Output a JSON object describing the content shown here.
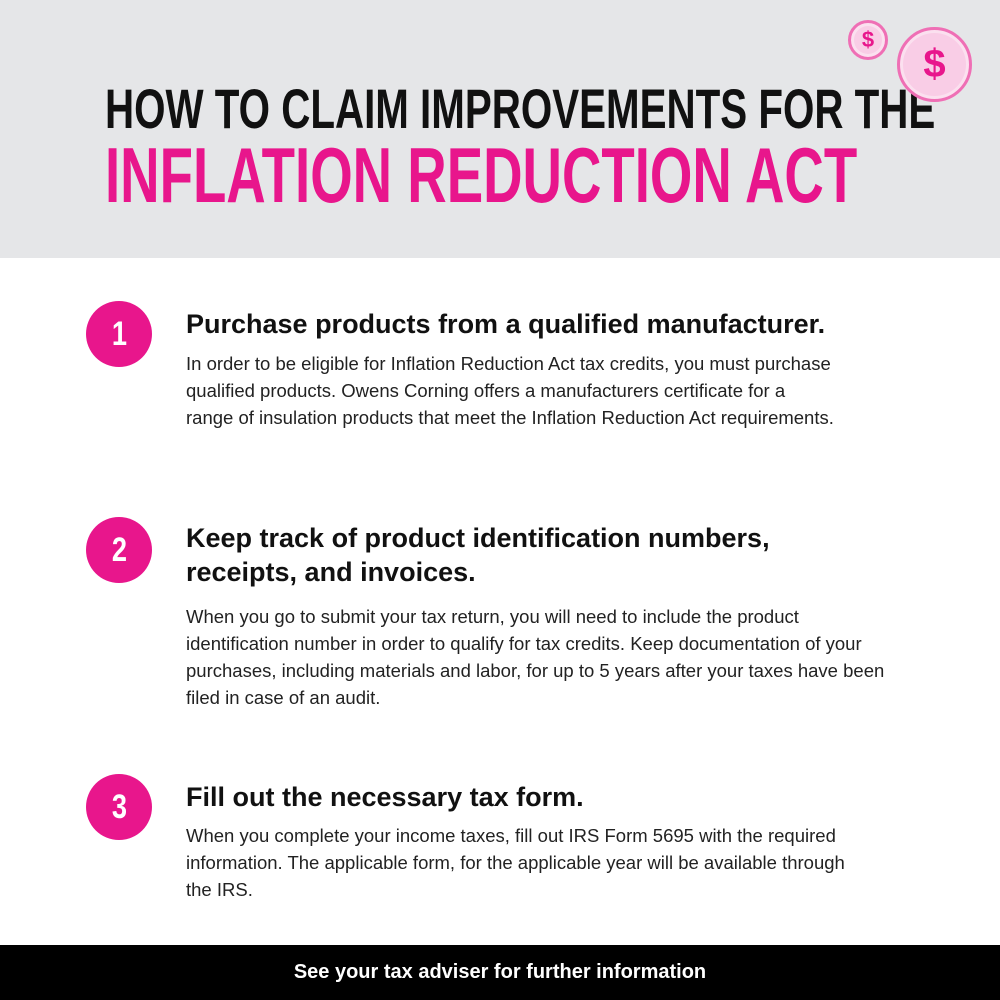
{
  "header": {
    "title_line1": "HOW TO CLAIM IMPROVEMENTS FOR THE",
    "title_line2": "INFLATION REDUCTION ACT",
    "coin_symbol": "$",
    "accent": "#e8168c"
  },
  "steps": [
    {
      "number": "1",
      "heading": "Purchase products from a qualified manufacturer.",
      "body": "In order to be eligible for Inflation Reduction Act tax credits, you must purchase qualified products. Owens Corning offers a manufacturers certificate for a range of insulation products that meet the Inflation Reduction Act requirements."
    },
    {
      "number": "2",
      "heading": "Keep track of product identification numbers, receipts, and invoices.",
      "body": "When you go to submit your tax return, you will need to include the product identification number in order to qualify for tax credits. Keep documentation of your purchases, including materials and labor, for up to 5 years after your taxes have been filed in case of an audit."
    },
    {
      "number": "3",
      "heading": "Fill out the necessary tax form.",
      "body": "When you complete your income taxes, fill out IRS Form 5695 with the required information. The applicable form, for the applicable year will be available through the IRS."
    }
  ],
  "footer": {
    "text": "See your tax adviser for further information"
  }
}
